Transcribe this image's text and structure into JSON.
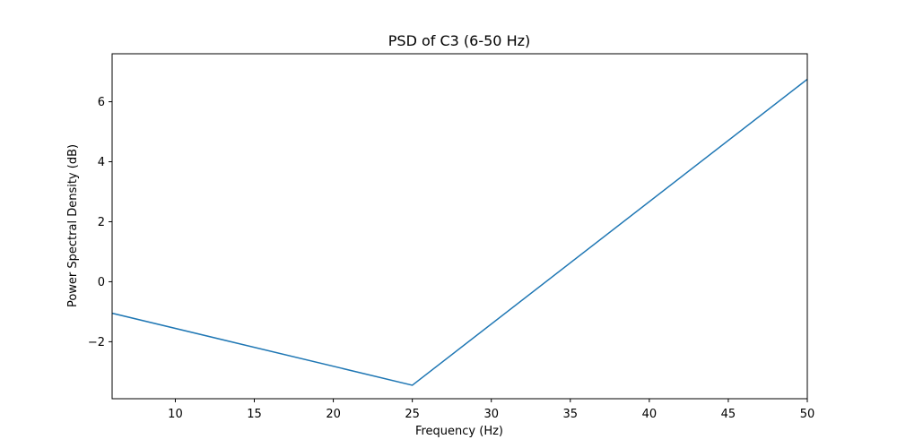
{
  "chart_data": {
    "type": "line",
    "title": "PSD of C3 (6-50 Hz)",
    "xlabel": "Frequency (Hz)",
    "ylabel": "Power Spectral Density (dB)",
    "xlim": [
      6,
      50
    ],
    "ylim": [
      -3.9,
      7.6
    ],
    "xticks": [
      10,
      15,
      20,
      25,
      30,
      35,
      40,
      45,
      50
    ],
    "yticks": [
      -2,
      0,
      2,
      4,
      6
    ],
    "xtick_labels": [
      "10",
      "15",
      "20",
      "25",
      "30",
      "35",
      "40",
      "45",
      "50"
    ],
    "ytick_labels": [
      "−2",
      "0",
      "2",
      "4",
      "6"
    ],
    "grid": false,
    "series": [
      {
        "color": "#1f77b4",
        "x": [
          6,
          25,
          50
        ],
        "y": [
          -1.05,
          -3.45,
          6.75
        ]
      }
    ]
  }
}
